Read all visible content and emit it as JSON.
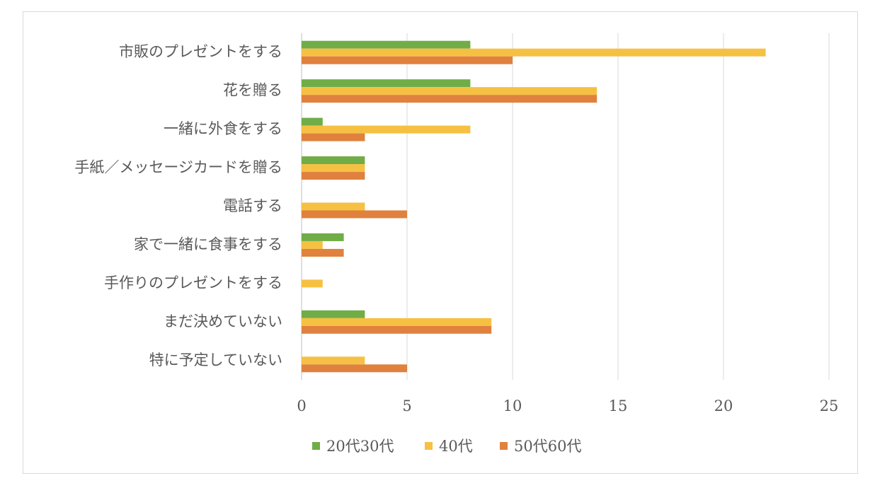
{
  "chart_data": {
    "type": "bar",
    "orientation": "horizontal",
    "categories": [
      "市販のプレゼントをする",
      "花を贈る",
      "一緒に外食をする",
      "手紙／メッセージカードを贈る",
      "電話する",
      "家で一緒に食事をする",
      "手作りのプレゼントをする",
      "まだ決めていない",
      "特に予定していない"
    ],
    "series": [
      {
        "name": "20代30代",
        "color": "#70ad47",
        "values": [
          8,
          8,
          1,
          3,
          0,
          2,
          0,
          3,
          0
        ]
      },
      {
        "name": "40代",
        "color": "#f6c143",
        "values": [
          22,
          14,
          8,
          3,
          3,
          1,
          1,
          9,
          3
        ]
      },
      {
        "name": "50代60代",
        "color": "#e0813e",
        "values": [
          10,
          14,
          3,
          3,
          5,
          2,
          0,
          9,
          5
        ]
      }
    ],
    "xlim": [
      0,
      25
    ],
    "xticks": [
      "0",
      "5",
      "10",
      "15",
      "20",
      "25"
    ],
    "grid": true,
    "legend_position": "bottom"
  }
}
